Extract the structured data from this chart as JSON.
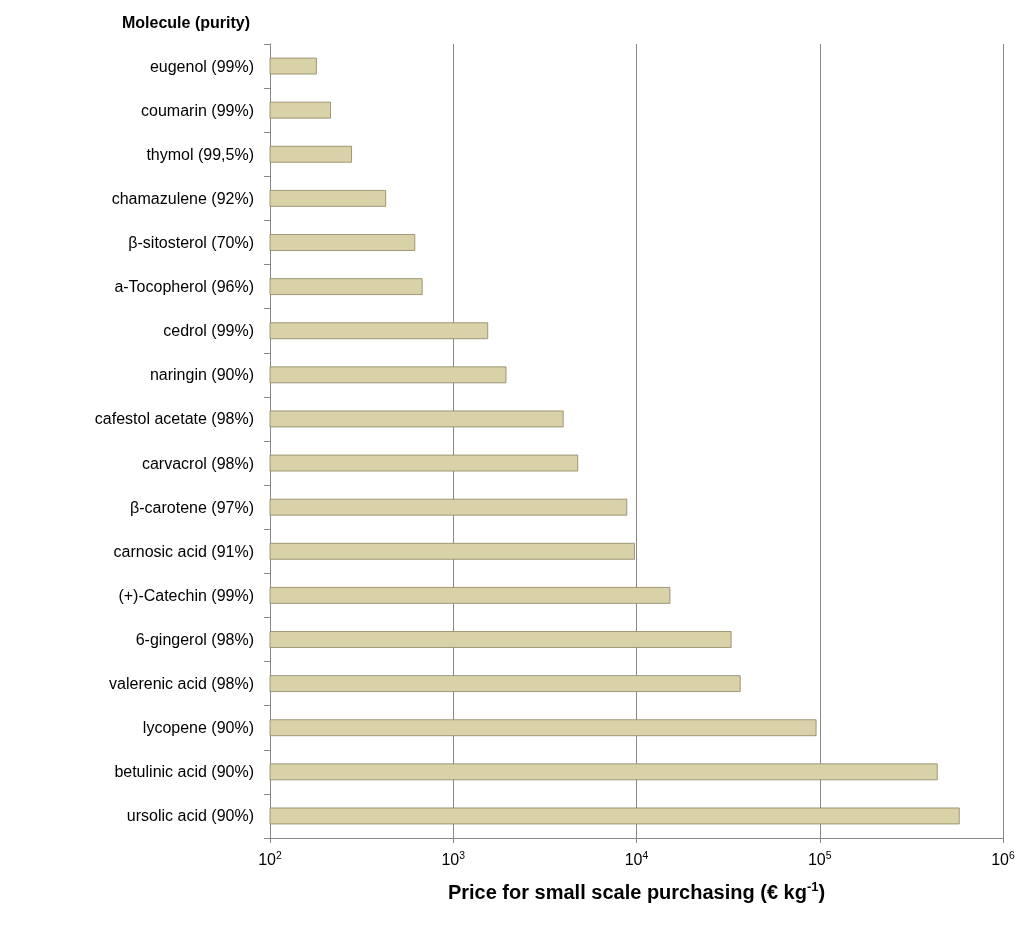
{
  "chart_data": {
    "type": "bar",
    "orientation": "horizontal",
    "ylabel": "Molecule (purity)",
    "xlabel": "Price for small scale purchasing (€ kg$^{-1}$)",
    "categories": [
      "eugenol (99%)",
      "coumarin (99%)",
      "thymol (99,5%)",
      "chamazulene (92%)",
      "β-sitosterol (70%)",
      "a-Tocopherol (96%)",
      "cedrol (99%)",
      "naringin (90%)",
      "cafestol acetate (98%)",
      "carvacrol (98%)",
      "β-carotene (97%)",
      "carnosic acid (91%)",
      "(+)-Catechin (99%)",
      "6-gingerol (98%)",
      "valerenic acid (98%)",
      "lycopene (90%)",
      "betulinic acid (90%)",
      "ursolic acid (90%)"
    ],
    "values": [
      180,
      215,
      280,
      430,
      620,
      680,
      1550,
      1950,
      4000,
      4800,
      8900,
      9800,
      15300,
      33000,
      37000,
      96000,
      440000,
      580000
    ],
    "color": "#d9d2a9",
    "log": "x",
    "xlim": [
      100,
      1000000
    ],
    "xticks": [
      {
        "value": 100,
        "label": "10$^{2}$"
      },
      {
        "value": 1000,
        "label": "10$^{3}$"
      },
      {
        "value": 10000,
        "label": "10$^{4}$"
      },
      {
        "value": 100000,
        "label": "10$^{5}$"
      },
      {
        "value": 1000000,
        "label": "10$^{6}$"
      }
    ],
    "grid": "x"
  }
}
